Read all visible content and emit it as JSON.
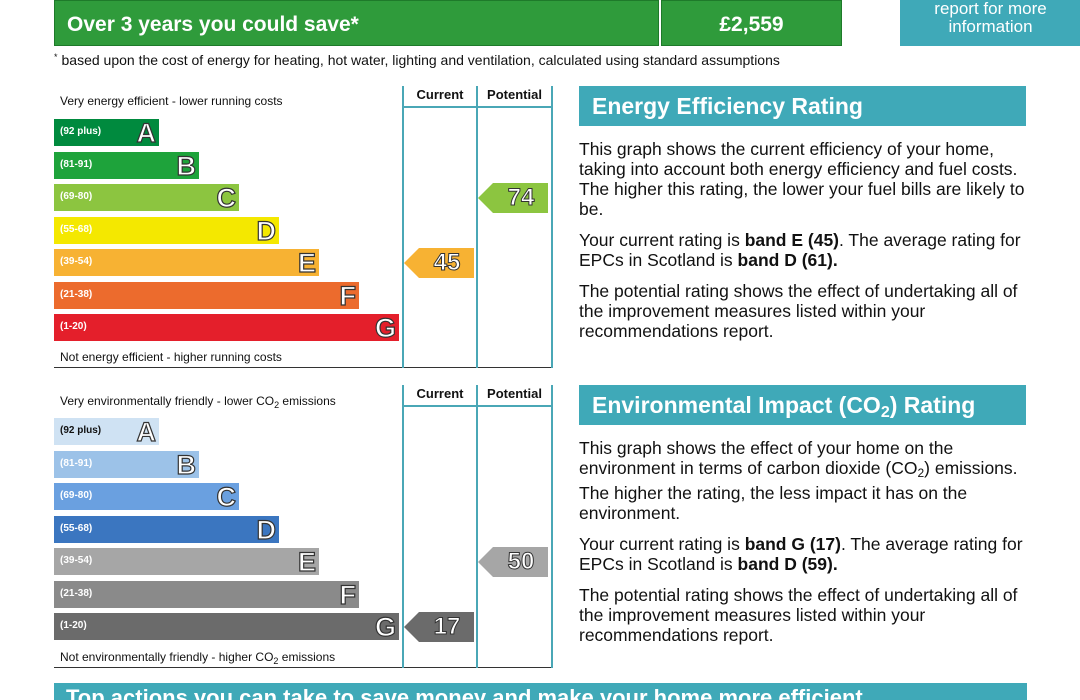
{
  "savings": {
    "label": "Over 3 years you could save",
    "asterisk": "*",
    "amount": "£2,559",
    "report_line1": "report for more",
    "report_line2": "information"
  },
  "footnote": {
    "marker": "*",
    "text": "based upon the cost of energy for heating, hot water, lighting and ventilation, calculated using standard assumptions"
  },
  "energy_graph": {
    "top_caption": "Very energy efficient - lower running costs",
    "bottom_caption": "Not energy efficient - higher running costs",
    "current_header": "Current",
    "potential_header": "Potential",
    "bands": [
      {
        "range": "(92 plus)",
        "letter": "A",
        "color": "#008a3e"
      },
      {
        "range": "(81-91)",
        "letter": "B",
        "color": "#1ea33b"
      },
      {
        "range": "(69-80)",
        "letter": "C",
        "color": "#8cc540"
      },
      {
        "range": "(55-68)",
        "letter": "D",
        "color": "#f4e800"
      },
      {
        "range": "(39-54)",
        "letter": "E",
        "color": "#f7b233"
      },
      {
        "range": "(21-38)",
        "letter": "F",
        "color": "#ec6b2d"
      },
      {
        "range": "(1-20)",
        "letter": "G",
        "color": "#e41f2b"
      }
    ],
    "current_value": "45",
    "current_band": "E",
    "current_color": "#f7b233",
    "potential_value": "74",
    "potential_band": "C",
    "potential_color": "#8cc540"
  },
  "env_graph": {
    "top_caption_pre": "Very environmentally friendly - lower CO",
    "top_caption_sub": "2",
    "top_caption_post": " emissions",
    "bottom_caption_pre": "Not environmentally friendly - higher CO",
    "bottom_caption_sub": "2",
    "bottom_caption_post": " emissions",
    "current_header": "Current",
    "potential_header": "Potential",
    "bands": [
      {
        "range": "(92 plus)",
        "letter": "A",
        "color": "#cfe2f3"
      },
      {
        "range": "(81-91)",
        "letter": "B",
        "color": "#9cc2e8"
      },
      {
        "range": "(69-80)",
        "letter": "C",
        "color": "#6aa0e0"
      },
      {
        "range": "(55-68)",
        "letter": "D",
        "color": "#3b76c0"
      },
      {
        "range": "(39-54)",
        "letter": "E",
        "color": "#a6a6a6"
      },
      {
        "range": "(21-38)",
        "letter": "F",
        "color": "#8a8a8a"
      },
      {
        "range": "(1-20)",
        "letter": "G",
        "color": "#6b6b6b"
      }
    ],
    "current_value": "17",
    "current_band": "G",
    "current_color": "#6b6b6b",
    "potential_value": "50",
    "potential_band": "E",
    "potential_color": "#a6a6a6"
  },
  "energy_panel": {
    "title": "Energy Efficiency Rating",
    "p1": "This graph shows the current efficiency of your home, taking into account both energy efficiency and fuel costs. The higher this rating, the lower your fuel bills are likely to be.",
    "p2_pre": "Your current rating is ",
    "p2_band": "band E (45)",
    "p2_mid": ". The average rating for EPCs in Scotland is ",
    "p2_avg": "band D (61).",
    "p3": "The potential rating shows the effect of undertaking all of the improvement measures listed within your recommendations report."
  },
  "env_panel": {
    "title_pre": "Environmental Impact (CO",
    "title_sub": "2",
    "title_post": ") Rating",
    "p1_pre": "This graph shows the effect of your home on the environment in terms of carbon dioxide (CO",
    "p1_sub": "2",
    "p1_post": ") emissions. The higher the rating, the less impact it has on the environment.",
    "p2_pre": "Your current rating is ",
    "p2_band": "band G (17)",
    "p2_mid": ". The average rating for EPCs in Scotland is ",
    "p2_avg": "band D (59).",
    "p3": "The potential rating shows the effect of undertaking all of the improvement measures listed within your recommendations report."
  },
  "bottom_banner": "Top actions you can take to save money and make your home more efficient"
}
